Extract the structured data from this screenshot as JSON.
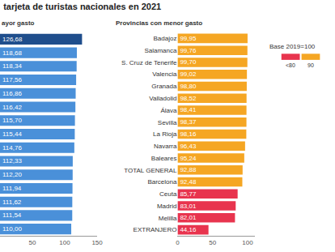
{
  "chart_data": [
    {
      "type": "bar",
      "orientation": "horizontal",
      "title": "tarjeta de turistas nacionales en 2021",
      "subtitle": "ayor gasto",
      "categories": [
        null,
        null,
        null,
        null,
        null,
        null,
        null,
        null,
        null,
        null,
        null,
        null,
        null,
        null,
        null
      ],
      "values": [
        126.68,
        118.68,
        118.34,
        117.56,
        116.86,
        116.42,
        115.7,
        115.44,
        114.76,
        112.33,
        112.2,
        111.94,
        111.62,
        111.54,
        110.0
      ],
      "value_labels": [
        "126,68",
        "118,68",
        "118,34",
        "117,56",
        "116,86",
        "116,42",
        "115,70",
        "115,44",
        "114,76",
        "112,33",
        "112,20",
        "111,94",
        "111,62",
        "111,54",
        "110,00"
      ],
      "data_labels": true,
      "colors": [
        "#1f4e8c",
        "#4a90d9",
        "#4a90d9",
        "#4a90d9",
        "#4a90d9",
        "#4a90d9",
        "#4a90d9",
        "#4a90d9",
        "#4a90d9",
        "#4a90d9",
        "#4a90d9",
        "#4a90d9",
        "#4a90d9",
        "#4a90d9",
        "#4a90d9"
      ],
      "xlim": [
        0,
        150
      ],
      "xticks": [
        50,
        100,
        150
      ],
      "grid": false
    },
    {
      "type": "bar",
      "orientation": "horizontal",
      "subtitle": "Provincias con menor gasto",
      "categories": [
        "Badajoz",
        "Salamanca",
        "S. Cruz de Tenerife",
        "Valencia",
        "Granada",
        "Valladolid",
        "Álava",
        "Sevilla",
        "La Rioja",
        "Navarra",
        "Baleares",
        "TOTAL GENERAL",
        "Barcelona",
        "Ceuta",
        "Madrid",
        "Melilla",
        "EXTRANJERO"
      ],
      "values": [
        99.95,
        99.76,
        99.7,
        99.02,
        98.8,
        98.52,
        98.41,
        98.37,
        98.16,
        96.43,
        95.24,
        92.88,
        92.48,
        85.77,
        83.01,
        82.01,
        44.16
      ],
      "value_labels": [
        "99,95",
        "99,76",
        "99,70",
        "99,02",
        "98,80",
        "98,52",
        "98,41",
        "98,37",
        "98,16",
        "96,43",
        "95,24",
        "92,88",
        "92,48",
        "85,77",
        "83,01",
        "82,01",
        "44,16"
      ],
      "data_labels": true,
      "colors": [
        "#f5a623",
        "#f5a623",
        "#f5a623",
        "#f5a623",
        "#f5a623",
        "#f5a623",
        "#f5a623",
        "#f5a623",
        "#f5a623",
        "#f5a623",
        "#f5a623",
        "#f5a623",
        "#f5a623",
        "#e8344e",
        "#e8344e",
        "#e8344e",
        "#e8344e"
      ],
      "xlim": [
        0,
        110
      ],
      "xticks": [
        0,
        50,
        100
      ],
      "grid": false
    }
  ],
  "map_legend": {
    "title": "Base 2019=100",
    "items": [
      {
        "label": "<80",
        "color": "#e8344e"
      },
      {
        "label": "90",
        "color": "#f5a623"
      }
    ]
  }
}
